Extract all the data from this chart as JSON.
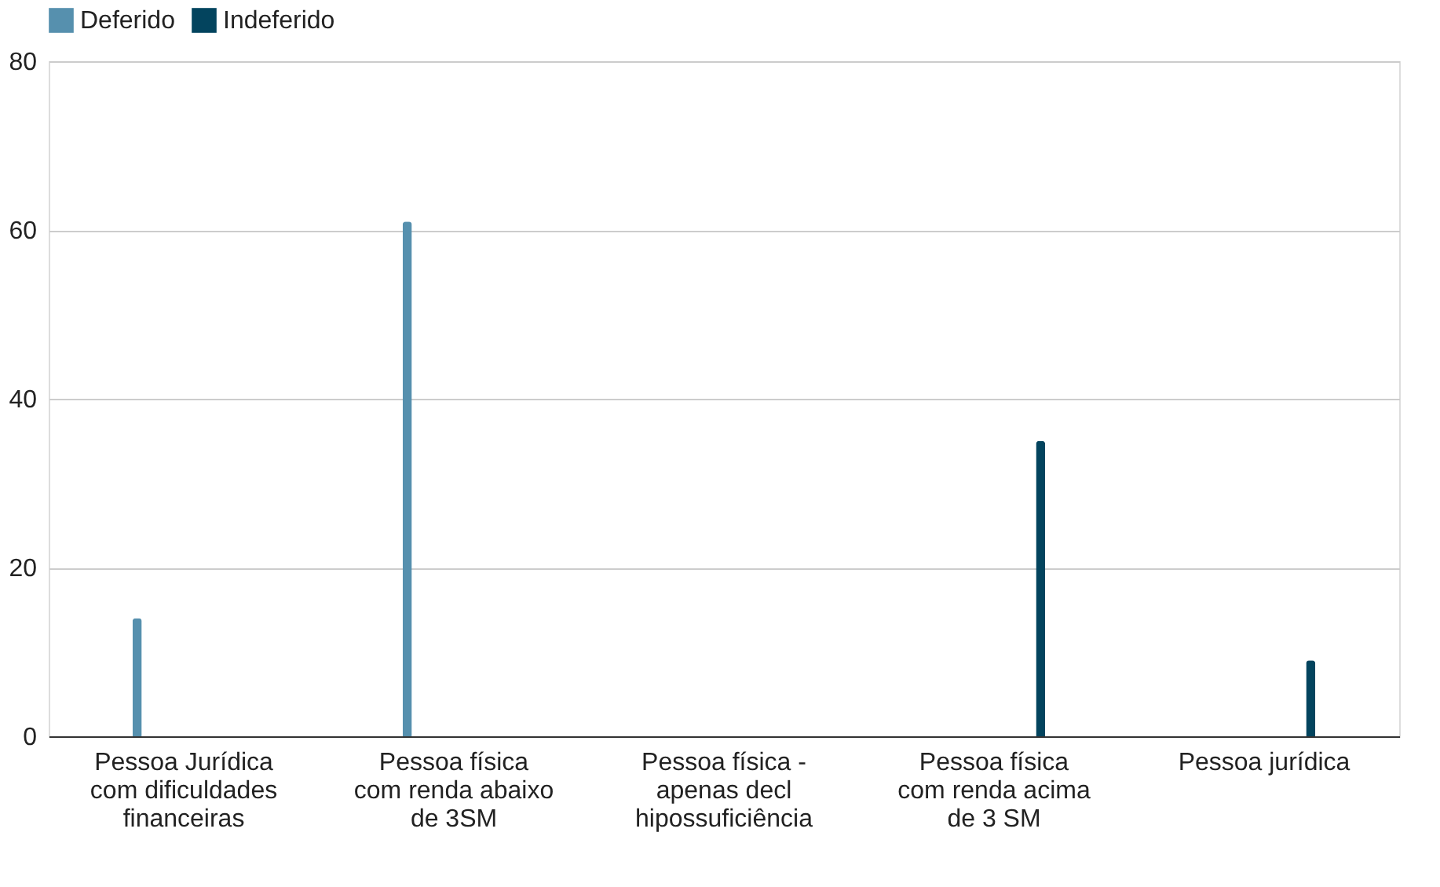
{
  "chart_data": {
    "type": "bar",
    "categories": [
      "Pessoa Jurídica com dificuldades financeiras",
      "Pessoa física com renda abaixo de 3SM",
      "Pessoa física  - apenas decl hipossuficiência",
      "Pessoa física com renda acima de 3 SM",
      "Pessoa jurídica"
    ],
    "series": [
      {
        "name": "Deferido",
        "color": "#5690ae",
        "values": [
          14,
          61,
          null,
          null,
          null
        ]
      },
      {
        "name": "Indeferido",
        "color": "#03445e",
        "values": [
          null,
          null,
          null,
          35,
          9
        ]
      }
    ],
    "ylim": [
      0,
      80
    ],
    "yticks": [
      0,
      20,
      40,
      60,
      80
    ],
    "grid": "y",
    "legend": "top"
  }
}
